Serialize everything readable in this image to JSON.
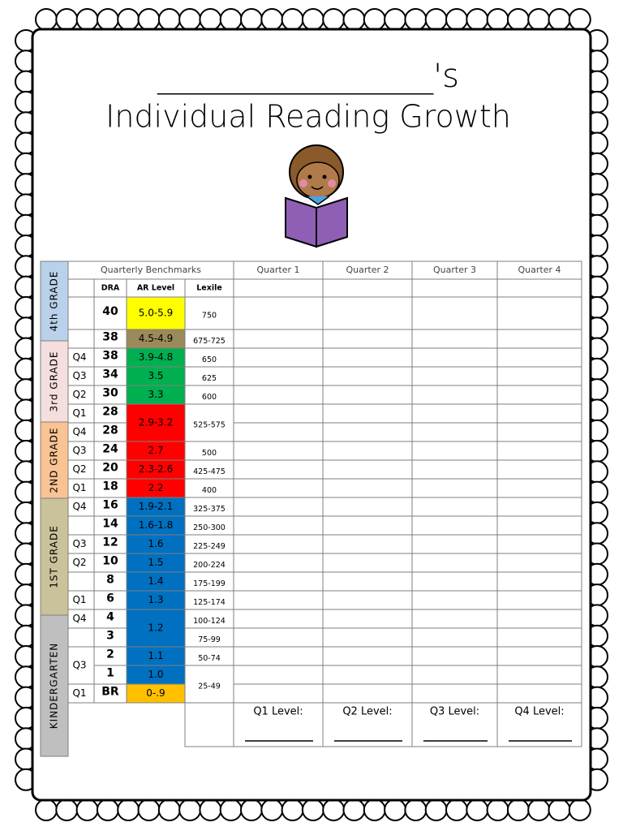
{
  "header": {
    "name_line": "_________________'s",
    "title": "Individual Reading Growth"
  },
  "table": {
    "benchmark_header": "Quarterly Benchmarks",
    "quarter_headers": [
      "Quarter 1",
      "Quarter 2",
      "Quarter 3",
      "Quarter 4"
    ],
    "column_headers": [
      "DRA",
      "AR Level",
      "Lexile"
    ],
    "grades": [
      {
        "label": "4th GRADE",
        "color": "#b9d1ea"
      },
      {
        "label": "3rd GRADE",
        "color": "#f4dede"
      },
      {
        "label": "2ND GRADE",
        "color": "#f9c394"
      },
      {
        "label": "1ST GRADE",
        "color": "#c9c29a"
      },
      {
        "label": "KINDERGARTEN",
        "color": "#bfbfbf"
      }
    ],
    "rows": [
      {
        "dra": "40",
        "ar": "5.0-5.9",
        "ar_color": "#ffff00",
        "lexile": "750"
      },
      {
        "dra": "38",
        "ar": "4.5-4.9",
        "ar_color": "#9b8a5a",
        "lexile": "675-725"
      },
      {
        "quarter": "Q4",
        "dra": "38",
        "ar": "3.9-4.8",
        "ar_color": "#00b050",
        "lexile": "650"
      },
      {
        "quarter": "Q3",
        "dra": "34",
        "ar": "3.5",
        "ar_color": "#00b050",
        "lexile": "625"
      },
      {
        "quarter": "Q2",
        "dra": "30",
        "ar": "3.3",
        "ar_color": "#00b050",
        "lexile": "600"
      },
      {
        "quarter": "Q1",
        "dra": "28",
        "ar": "2.9-3.2",
        "ar_color": "#ff0000",
        "lexile": "525-575"
      },
      {
        "quarter": "Q4",
        "dra": "28"
      },
      {
        "quarter": "Q3",
        "dra": "24",
        "ar": "2.7",
        "ar_color": "#ff0000",
        "lexile": "500"
      },
      {
        "quarter": "Q2",
        "dra": "20",
        "ar": "2.3-2.6",
        "ar_color": "#ff0000",
        "lexile": "425-475"
      },
      {
        "quarter": "Q1",
        "dra": "18",
        "ar": "2.2",
        "ar_color": "#ff0000",
        "lexile": "400"
      },
      {
        "quarter": "Q4",
        "dra": "16",
        "ar": "1.9-2.1",
        "ar_color": "#0070c0",
        "lexile": "325-375"
      },
      {
        "dra": "14",
        "ar": "1.6-1.8",
        "ar_color": "#0070c0",
        "lexile": "250-300"
      },
      {
        "quarter": "Q3",
        "dra": "12",
        "ar": "1.6",
        "ar_color": "#0070c0",
        "lexile": "225-249"
      },
      {
        "quarter": "Q2",
        "dra": "10",
        "ar": "1.5",
        "ar_color": "#0070c0",
        "lexile": "200-224"
      },
      {
        "dra": "8",
        "ar": "1.4",
        "ar_color": "#0070c0",
        "lexile": "175-199"
      },
      {
        "quarter": "Q1",
        "dra": "6",
        "ar": "1.3",
        "ar_color": "#0070c0",
        "lexile": "125-174"
      },
      {
        "quarter": "Q4",
        "dra": "4",
        "ar": "1.2",
        "ar_color": "#0070c0",
        "lexile": "100-124"
      },
      {
        "dra": "3",
        "lexile": "75-99"
      },
      {
        "quarter": "Q3",
        "dra": "2",
        "ar": "1.1",
        "ar_color": "#0070c0",
        "lexile": "50-74"
      },
      {
        "dra": "1",
        "ar": "1.0",
        "ar_color": "#0070c0",
        "lexile": "25-49"
      },
      {
        "quarter": "Q1",
        "dra": "BR",
        "ar": "0-.9",
        "ar_color": "#ffc000"
      }
    ],
    "level_labels": [
      "Q1 Level:",
      "Q2 Level:",
      "Q3 Level:",
      "Q4 Level:"
    ]
  }
}
